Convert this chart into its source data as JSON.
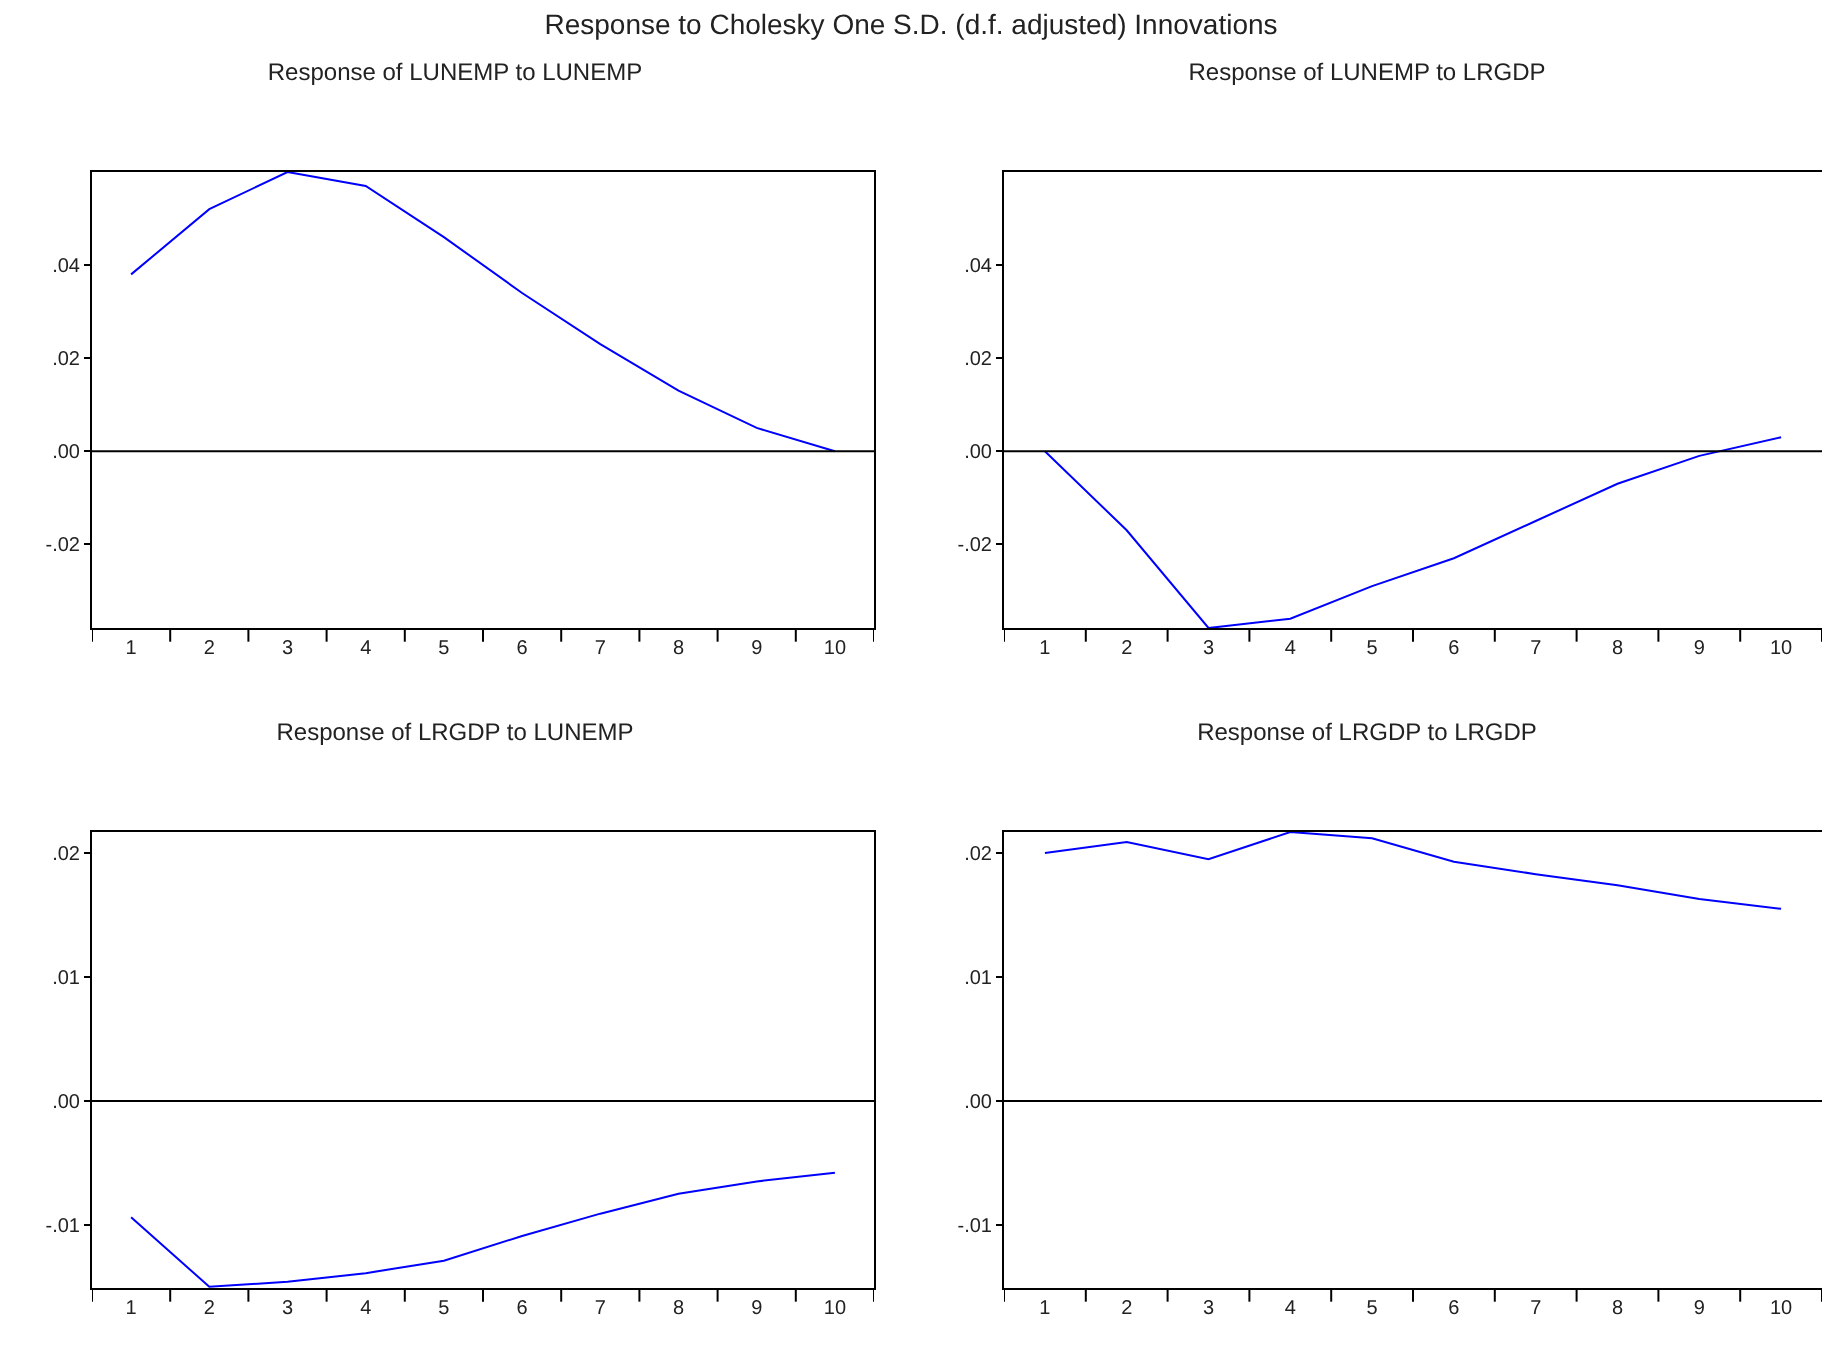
{
  "chart_data": [
    {
      "type": "line",
      "title": "Response of LUNEMP to LUNEMP",
      "annotations": [
        "Response to Cholesky One S.D. (d.f. adjusted) Innovations"
      ],
      "categories": [
        "1",
        "2",
        "3",
        "4",
        "5",
        "6",
        "7",
        "8",
        "9",
        "10"
      ],
      "series": [
        {
          "color": "#0000ff",
          "values": [
            0.038,
            0.052,
            0.06,
            0.057,
            0.046,
            0.034,
            0.023,
            0.013,
            0.005,
            0.0
          ]
        }
      ],
      "ylim": [
        -0.038,
        0.06
      ],
      "yticks": [
        {
          "value": -0.02,
          "label": "-.02"
        },
        {
          "value": 0,
          "label": ".00"
        },
        {
          "value": 0.02,
          "label": ".02"
        },
        {
          "value": 0.04,
          "label": ".04"
        }
      ],
      "ref_lines": [
        {
          "axis": "y",
          "value": 0,
          "color": "#000000"
        }
      ],
      "grid": false,
      "marker": "none",
      "line_style": "solid"
    },
    {
      "type": "line",
      "title": "Response of LUNEMP to LRGDP",
      "categories": [
        "1",
        "2",
        "3",
        "4",
        "5",
        "6",
        "7",
        "8",
        "9",
        "10"
      ],
      "series": [
        {
          "color": "#0000ff",
          "values": [
            0.0,
            -0.017,
            -0.038,
            -0.036,
            -0.029,
            -0.023,
            -0.015,
            -0.007,
            -0.001,
            0.003
          ]
        }
      ],
      "ylim": [
        -0.038,
        0.06
      ],
      "yticks": [
        {
          "value": -0.02,
          "label": "-.02"
        },
        {
          "value": 0,
          "label": ".00"
        },
        {
          "value": 0.02,
          "label": ".02"
        },
        {
          "value": 0.04,
          "label": ".04"
        }
      ],
      "ref_lines": [
        {
          "axis": "y",
          "value": 0,
          "color": "#000000"
        }
      ],
      "grid": false,
      "marker": "none",
      "line_style": "solid"
    },
    {
      "type": "line",
      "title": "Response of LRGDP to LUNEMP",
      "categories": [
        "1",
        "2",
        "3",
        "4",
        "5",
        "6",
        "7",
        "8",
        "9",
        "10"
      ],
      "series": [
        {
          "color": "#0000ff",
          "values": [
            -0.0094,
            -0.015,
            -0.0146,
            -0.0139,
            -0.0129,
            -0.0109,
            -0.0091,
            -0.0075,
            -0.0065,
            -0.0058
          ]
        }
      ],
      "ylim": [
        -0.0151,
        0.0217
      ],
      "yticks": [
        {
          "value": -0.01,
          "label": "-.01"
        },
        {
          "value": 0,
          "label": ".00"
        },
        {
          "value": 0.01,
          "label": ".01"
        },
        {
          "value": 0.02,
          "label": ".02"
        }
      ],
      "ref_lines": [
        {
          "axis": "y",
          "value": 0,
          "color": "#000000"
        }
      ],
      "grid": false,
      "marker": "none",
      "line_style": "solid"
    },
    {
      "type": "line",
      "title": "Response of LRGDP to LRGDP",
      "categories": [
        "1",
        "2",
        "3",
        "4",
        "5",
        "6",
        "7",
        "8",
        "9",
        "10"
      ],
      "series": [
        {
          "color": "#0000ff",
          "values": [
            0.02,
            0.0209,
            0.0195,
            0.0217,
            0.0212,
            0.0193,
            0.0183,
            0.0174,
            0.0163,
            0.0155
          ]
        }
      ],
      "ylim": [
        -0.0151,
        0.0217
      ],
      "yticks": [
        {
          "value": -0.01,
          "label": "-.01"
        },
        {
          "value": 0,
          "label": ".00"
        },
        {
          "value": 0.01,
          "label": ".01"
        },
        {
          "value": 0.02,
          "label": ".02"
        }
      ],
      "ref_lines": [
        {
          "axis": "y",
          "value": 0,
          "color": "#000000"
        }
      ],
      "grid": false,
      "marker": "none",
      "line_style": "solid"
    }
  ]
}
